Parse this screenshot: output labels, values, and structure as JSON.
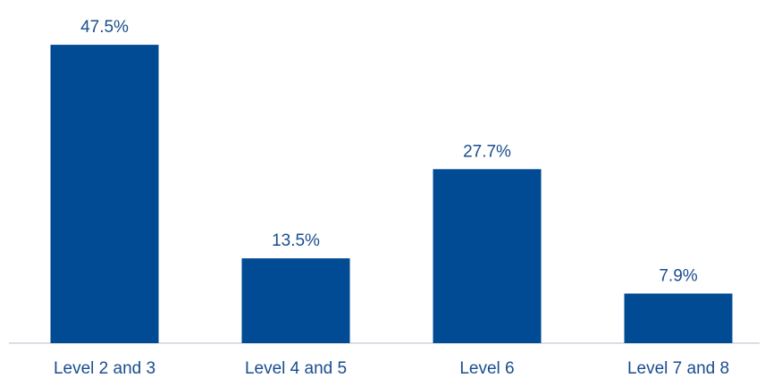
{
  "chart_data": {
    "type": "bar",
    "title": "",
    "xlabel": "",
    "ylabel": "",
    "categories": [
      "Level 2 and 3",
      "Level 4 and 5",
      "Level 6",
      "Level 7 and 8"
    ],
    "values": [
      47.5,
      13.5,
      27.7,
      7.9
    ],
    "data_labels": [
      "47.5%",
      "13.5%",
      "27.7%",
      "7.9%"
    ],
    "ylim": [
      0,
      50
    ],
    "grid": false,
    "legend": "none",
    "colors": {
      "bar": "#004b93",
      "text": "#1a4d8f",
      "axis": "#b8bfcc"
    }
  }
}
